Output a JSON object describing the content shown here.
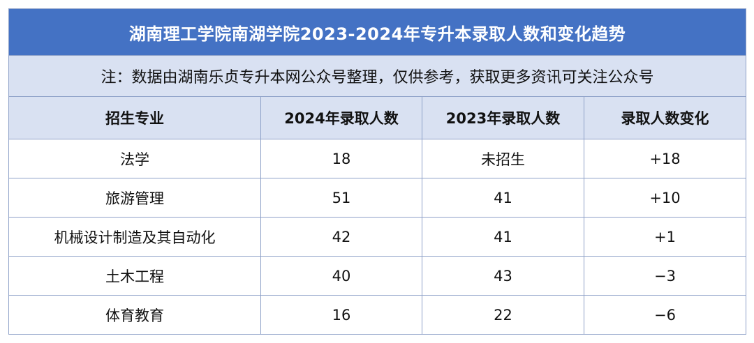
{
  "title": "湖南理工学院南湖学院2023-2024年专升本录取人数和变化趋势",
  "note": "注：数据由湖南乐贞专升本网公众号整理，仅供参考，获取更多资讯可关注公众号",
  "headers": [
    "招生专业",
    "2024年录取人数",
    "2023年录取人数",
    "录取人数变化"
  ],
  "rows": [
    [
      "法学",
      "18",
      "未招生",
      "+18"
    ],
    [
      "旅游管理",
      "51",
      "41",
      "+10"
    ],
    [
      "机械设计制造及其自动化",
      "42",
      "41",
      "+1"
    ],
    [
      "土木工程",
      "40",
      "43",
      "−3"
    ],
    [
      "体育教育",
      "16",
      "22",
      "−6"
    ]
  ],
  "colors": {
    "title_bg": "#4472c4",
    "header_bg": "#d9e1f2",
    "border": "#8ea1c8"
  }
}
